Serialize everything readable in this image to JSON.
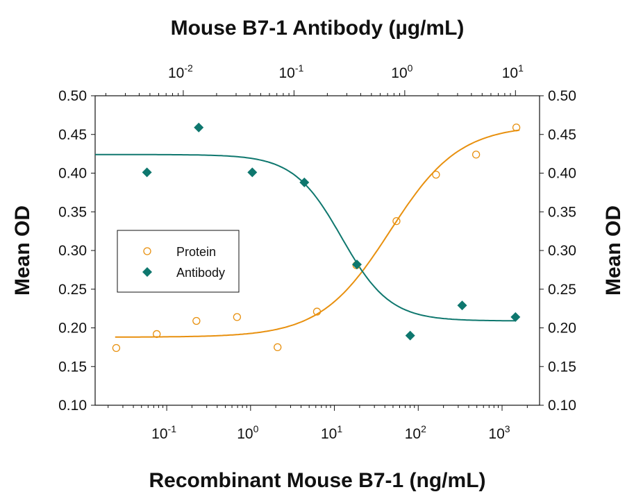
{
  "chart_data": {
    "type": "scatter",
    "top_title": "Mouse B7-1 Antibody (µg/mL)",
    "xlabel": "Recombinant Mouse B7-1 (ng/mL)",
    "ylabel_left": "Mean OD",
    "ylabel_right": "Mean OD",
    "x_scale": "log",
    "xlim": [
      0.014,
      2800
    ],
    "x_ticks": [
      {
        "base": "10",
        "exp": "-1",
        "v": 0.1
      },
      {
        "base": "10",
        "exp": "0",
        "v": 1
      },
      {
        "base": "10",
        "exp": "1",
        "v": 10
      },
      {
        "base": "10",
        "exp": "2",
        "v": 100
      },
      {
        "base": "10",
        "exp": "3",
        "v": 1000
      }
    ],
    "x_top_scale": "log",
    "x_top_lim": [
      0.0016,
      16.5
    ],
    "x_top_ticks": [
      {
        "base": "10",
        "exp": "-2",
        "v": 0.01
      },
      {
        "base": "10",
        "exp": "-1",
        "v": 0.1
      },
      {
        "base": "10",
        "exp": "0",
        "v": 1
      },
      {
        "base": "10",
        "exp": "1",
        "v": 10
      }
    ],
    "ylim": [
      0.1,
      0.5
    ],
    "y_ticks": [
      "0.10",
      "0.15",
      "0.20",
      "0.25",
      "0.30",
      "0.35",
      "0.40",
      "0.45",
      "0.50"
    ],
    "grid": false,
    "legend_placement": "center-left",
    "series": [
      {
        "name": "Protein",
        "axis": "bottom",
        "marker": "open-circle",
        "color": "#E8900E",
        "x": [
          0.025,
          0.076,
          0.226,
          0.69,
          2.1,
          6.2,
          18.3,
          55,
          163,
          490,
          1480
        ],
        "y": [
          0.174,
          0.192,
          0.209,
          0.214,
          0.175,
          0.221,
          0.281,
          0.338,
          0.398,
          0.424,
          0.459
        ],
        "fit": {
          "bottom": 0.188,
          "top": 0.462,
          "ec50": 46,
          "hill": 1.05
        }
      },
      {
        "name": "Antibody",
        "axis": "top",
        "marker": "filled-diamond",
        "color": "#0E776E",
        "x": [
          0.0047,
          0.0138,
          0.042,
          0.124,
          0.37,
          1.12,
          3.3,
          10
        ],
        "y": [
          0.401,
          0.459,
          0.401,
          0.388,
          0.282,
          0.19,
          0.229,
          0.214
        ],
        "fit": {
          "bottom": 0.209,
          "top": 0.424,
          "ec50": 0.27,
          "hill": 2.0
        }
      }
    ]
  }
}
